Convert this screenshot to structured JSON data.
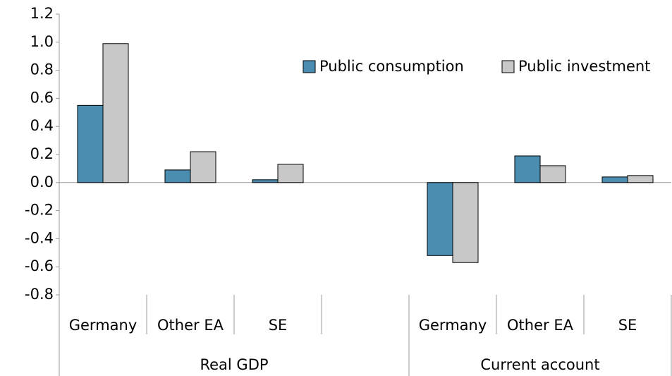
{
  "chart_data": {
    "type": "bar",
    "categories": [
      "Germany",
      "Other EA",
      "SE",
      null,
      "Germany",
      "Other EA",
      "SE"
    ],
    "category_groups": [
      "Real GDP",
      "Current account"
    ],
    "series": [
      {
        "name": "Public consumption",
        "color": "#4a8db0",
        "values": [
          0.55,
          0.09,
          0.02,
          null,
          -0.52,
          0.19,
          0.04
        ]
      },
      {
        "name": "Public investment",
        "color": "#c8c8c8",
        "values": [
          0.99,
          0.22,
          0.13,
          null,
          -0.57,
          0.12,
          0.05
        ]
      }
    ],
    "ylim": [
      -0.8,
      1.2
    ],
    "yticks": [
      -0.8,
      -0.6,
      -0.4,
      -0.2,
      {
        "value": 0,
        "label": "0.0"
      },
      0.2,
      0.4,
      0.6,
      0.8,
      {
        "value": 1,
        "label": "1.0"
      },
      1.2
    ],
    "legend": "top-right"
  }
}
